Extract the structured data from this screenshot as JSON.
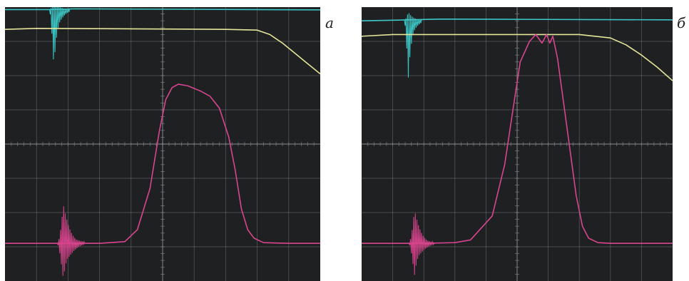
{
  "labels": {
    "panel_a": "a",
    "panel_b": "б"
  },
  "colors": {
    "screen_background": "#1e2022",
    "grid": "#8a8c8e",
    "cyan_trace": "#3ec8c8",
    "yellow_trace": "#e6e69a",
    "magenta_trace": "#d9458e"
  },
  "chart_data": [
    {
      "type": "line",
      "panel": "a",
      "title": "",
      "xlabel": "",
      "ylabel": "",
      "grid": true,
      "grid_divisions": {
        "x": 10,
        "y": 8
      },
      "xlim": [
        0,
        10
      ],
      "ylim": [
        0,
        8
      ],
      "series": [
        {
          "color": "#3ec8c8",
          "kind": "trace",
          "x": [
            0,
            1.35,
            1.45,
            2.2,
            10
          ],
          "y": [
            7.93,
            7.93,
            7.93,
            7.95,
            7.92
          ]
        },
        {
          "color": "#3ec8c8",
          "kind": "burst",
          "center": 1.55,
          "width": 0.55,
          "amplitude": 1.8,
          "skew": "down",
          "baseline": 7.93
        },
        {
          "color": "#e6e69a",
          "kind": "trace",
          "x": [
            0,
            1,
            3,
            5,
            7,
            8,
            8.4,
            8.8,
            9.2,
            9.6,
            10
          ],
          "y": [
            7.35,
            7.38,
            7.37,
            7.36,
            7.35,
            7.33,
            7.2,
            6.95,
            6.65,
            6.35,
            6.05
          ]
        },
        {
          "color": "#d9458e",
          "kind": "trace",
          "x": [
            0,
            1,
            2,
            3,
            3.8,
            4.2,
            4.6,
            4.9,
            5.1,
            5.3,
            5.5,
            5.8,
            6.2,
            6.5,
            6.8,
            7.1,
            7.3,
            7.5,
            7.7,
            7.9,
            8.2,
            9,
            10
          ],
          "y": [
            1.1,
            1.1,
            1.1,
            1.1,
            1.15,
            1.5,
            2.7,
            4.4,
            5.3,
            5.65,
            5.75,
            5.7,
            5.55,
            5.4,
            5.05,
            4.2,
            3.25,
            2.1,
            1.5,
            1.25,
            1.12,
            1.1,
            1.1
          ]
        },
        {
          "color": "#d9458e",
          "kind": "burst",
          "center": 1.85,
          "width": 0.75,
          "amplitude": 2.4,
          "skew": "none",
          "baseline": 1.1
        }
      ]
    },
    {
      "type": "line",
      "panel": "б",
      "title": "",
      "xlabel": "",
      "ylabel": "",
      "grid": true,
      "grid_divisions": {
        "x": 10,
        "y": 8
      },
      "xlim": [
        0,
        10
      ],
      "ylim": [
        0,
        8
      ],
      "series": [
        {
          "color": "#3ec8c8",
          "kind": "trace",
          "x": [
            0,
            1.2,
            1.5,
            2.5,
            10
          ],
          "y": [
            7.6,
            7.62,
            7.63,
            7.65,
            7.63
          ]
        },
        {
          "color": "#3ec8c8",
          "kind": "burst",
          "center": 1.5,
          "width": 0.5,
          "amplitude": 1.8,
          "skew": "down",
          "baseline": 7.62
        },
        {
          "color": "#e6e69a",
          "kind": "trace",
          "x": [
            0,
            1,
            3,
            5,
            7,
            8,
            8.5,
            9,
            9.5,
            10
          ],
          "y": [
            7.15,
            7.2,
            7.2,
            7.2,
            7.2,
            7.1,
            6.9,
            6.6,
            6.25,
            5.85
          ]
        },
        {
          "color": "#d9458e",
          "kind": "trace",
          "x": [
            0,
            1,
            2,
            3,
            3.5,
            4.2,
            4.6,
            4.9,
            5.1,
            5.4,
            5.6,
            5.8,
            5.95,
            6.05,
            6.15,
            6.3,
            6.6,
            6.9,
            7.1,
            7.3,
            7.6,
            8,
            9,
            10
          ],
          "y": [
            1.1,
            1.1,
            1.1,
            1.12,
            1.2,
            1.9,
            3.4,
            5.2,
            6.4,
            7.0,
            7.2,
            6.95,
            7.2,
            6.95,
            7.15,
            6.5,
            4.5,
            2.5,
            1.6,
            1.25,
            1.12,
            1.1,
            1.1,
            1.1
          ]
        },
        {
          "color": "#d9458e",
          "kind": "burst",
          "center": 1.7,
          "width": 0.7,
          "amplitude": 2.1,
          "skew": "none",
          "baseline": 1.1
        }
      ]
    }
  ]
}
